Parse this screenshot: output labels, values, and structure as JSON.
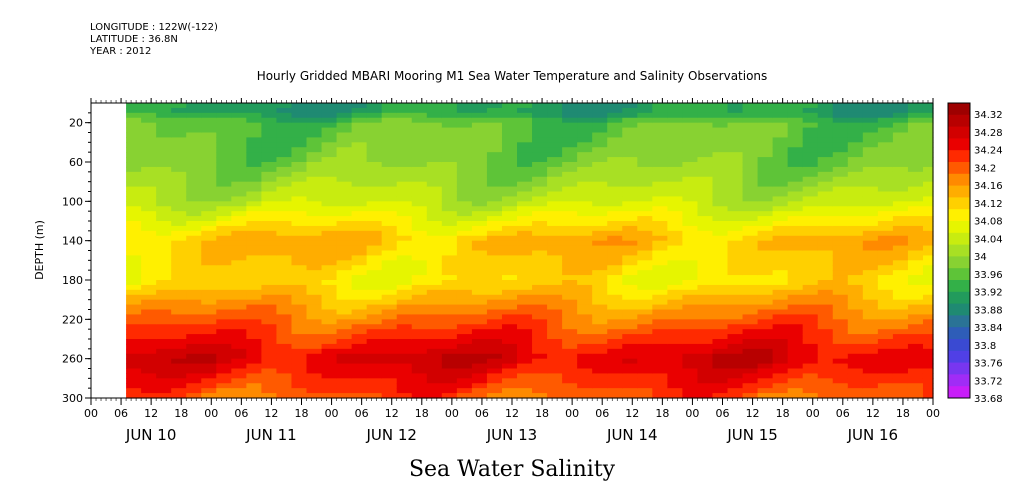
{
  "header": {
    "longitude": "LONGITUDE : 122W(-122)",
    "latitude": "LATITUDE : 36.8N",
    "year": "YEAR : 2012"
  },
  "chart_data": {
    "type": "heatmap",
    "title": "Hourly Gridded MBARI Mooring M1 Sea Water Temperature and Salinity Observations",
    "xlabel": "Sea Water Salinity",
    "ylabel": "DEPTH (m)",
    "x_start": "2012-06-10 00:00",
    "x_end": "2012-06-17 00:00",
    "x_hour_ticks": [
      "00",
      "06",
      "12",
      "18",
      "00",
      "06",
      "12",
      "18",
      "00",
      "06",
      "12",
      "18",
      "00",
      "06",
      "12",
      "18",
      "00",
      "06",
      "12",
      "18",
      "00",
      "06",
      "12",
      "18",
      "00",
      "06",
      "12",
      "18",
      "00"
    ],
    "x_day_labels": [
      "JUN 10",
      "JUN 11",
      "JUN 12",
      "JUN 13",
      "JUN 14",
      "JUN 15",
      "JUN 16"
    ],
    "y_ticks": [
      20,
      60,
      100,
      140,
      180,
      220,
      260,
      300
    ],
    "ylim": [
      300,
      0
    ],
    "no_data_before": "2012-06-10 07:00",
    "colorbar": {
      "labels": [
        "34.32",
        "34.28",
        "34.24",
        "34.2",
        "34.16",
        "34.12",
        "34.08",
        "34.04",
        "34",
        "33.96",
        "33.92",
        "33.88",
        "33.84",
        "33.8",
        "33.76",
        "33.72",
        "33.68"
      ],
      "colors": [
        "#9e0000",
        "#b80000",
        "#d20000",
        "#ea0000",
        "#ff2a00",
        "#ff5a00",
        "#ff8a00",
        "#ffad00",
        "#ffd000",
        "#fff000",
        "#e6f500",
        "#c8ec10",
        "#a8e024",
        "#88d232",
        "#5ec438",
        "#33b048",
        "#229b5c",
        "#1f8a72",
        "#2a7396",
        "#2e5db8",
        "#3a4ad2",
        "#5040e6",
        "#7836f0",
        "#a02cf6",
        "#c81ef8"
      ]
    },
    "salinity_by_depth": [
      {
        "depth": 10,
        "value": 33.9
      },
      {
        "depth": 20,
        "value": 33.95
      },
      {
        "depth": 60,
        "value": 33.97
      },
      {
        "depth": 100,
        "value": 34.02
      },
      {
        "depth": 140,
        "value": 34.12
      },
      {
        "depth": 180,
        "value": 34.08
      },
      {
        "depth": 220,
        "value": 34.17
      },
      {
        "depth": 260,
        "value": 34.25
      },
      {
        "depth": 300,
        "value": 34.18
      }
    ]
  }
}
